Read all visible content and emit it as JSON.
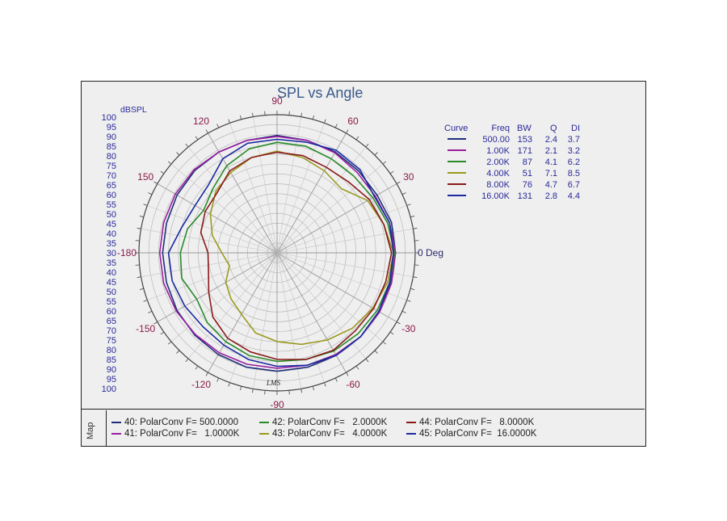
{
  "chart_data": {
    "type": "polar",
    "title": "SPL vs Angle",
    "radial_unit_label": "dBSPL",
    "radial_tick_labels": [
      "100",
      "95",
      "90",
      "85",
      "80",
      "75",
      "70",
      "65",
      "60",
      "55",
      "50",
      "45",
      "40",
      "35",
      "30",
      "35",
      "40",
      "45",
      "50",
      "55",
      "60",
      "65",
      "70",
      "75",
      "80",
      "85",
      "90",
      "95",
      "100"
    ],
    "angle_labels": [
      {
        "angle": 90,
        "text": "90"
      },
      {
        "angle": 60,
        "text": "60"
      },
      {
        "angle": 30,
        "text": "30"
      },
      {
        "angle": 0,
        "text": "0 Deg"
      },
      {
        "angle": -30,
        "text": "-30"
      },
      {
        "angle": -60,
        "text": "-60"
      },
      {
        "angle": -90,
        "text": "-90"
      },
      {
        "angle": -120,
        "text": "-120"
      },
      {
        "angle": -150,
        "text": "-150"
      },
      {
        "angle": 180,
        "text": "-180"
      },
      {
        "angle": 150,
        "text": "150"
      },
      {
        "angle": 120,
        "text": "120"
      }
    ],
    "radial_range": [
      30,
      100
    ],
    "watermark": "LMS",
    "legend": {
      "headers": {
        "curve": "Curve",
        "freq": "Freq",
        "bw": "BW",
        "q": "Q",
        "di": "DI"
      },
      "rows": [
        {
          "freq": "500.00",
          "bw": "153",
          "q": "2.4",
          "di": "3.7"
        },
        {
          "freq": "1.00K",
          "bw": "171",
          "q": "2.1",
          "di": "3.2"
        },
        {
          "freq": "2.00K",
          "bw": "87",
          "q": "4.1",
          "di": "6.2"
        },
        {
          "freq": "4.00K",
          "bw": "51",
          "q": "7.1",
          "di": "8.5"
        },
        {
          "freq": "8.00K",
          "bw": "76",
          "q": "4.7",
          "di": "6.7"
        },
        {
          "freq": "16.00K",
          "bw": "131",
          "q": "2.8",
          "di": "4.4"
        }
      ]
    },
    "series": [
      {
        "color": "#1f2f7a",
        "values": [
          {
            "a": 0,
            "r": 90
          },
          {
            "a": 15,
            "r": 90
          },
          {
            "a": 30,
            "r": 88.5
          },
          {
            "a": 45,
            "r": 88.5
          },
          {
            "a": 60,
            "r": 89
          },
          {
            "a": 75,
            "r": 89
          },
          {
            "a": 90,
            "r": 89.5
          },
          {
            "a": 105,
            "r": 89
          },
          {
            "a": 120,
            "r": 89
          },
          {
            "a": 135,
            "r": 89
          },
          {
            "a": 150,
            "r": 88.5
          },
          {
            "a": 165,
            "r": 88
          },
          {
            "a": 180,
            "r": 88
          },
          {
            "a": 195,
            "r": 88
          },
          {
            "a": 210,
            "r": 88.5
          },
          {
            "a": 225,
            "r": 89
          },
          {
            "a": 240,
            "r": 89.5
          },
          {
            "a": 255,
            "r": 90
          },
          {
            "a": 270,
            "r": 90
          },
          {
            "a": 285,
            "r": 90
          },
          {
            "a": 300,
            "r": 90
          },
          {
            "a": 315,
            "r": 90
          },
          {
            "a": 330,
            "r": 89.5
          },
          {
            "a": 345,
            "r": 89.5
          }
        ]
      },
      {
        "color": "#9a1fa0",
        "values": [
          {
            "a": 0,
            "r": 90
          },
          {
            "a": 15,
            "r": 89
          },
          {
            "a": 30,
            "r": 87.5
          },
          {
            "a": 45,
            "r": 87.5
          },
          {
            "a": 60,
            "r": 88.5
          },
          {
            "a": 75,
            "r": 89
          },
          {
            "a": 90,
            "r": 89
          },
          {
            "a": 105,
            "r": 89
          },
          {
            "a": 120,
            "r": 89
          },
          {
            "a": 135,
            "r": 89.5
          },
          {
            "a": 150,
            "r": 89.5
          },
          {
            "a": 165,
            "r": 89.5
          },
          {
            "a": 180,
            "r": 89.5
          },
          {
            "a": 195,
            "r": 89.5
          },
          {
            "a": 210,
            "r": 89
          },
          {
            "a": 225,
            "r": 88.5
          },
          {
            "a": 240,
            "r": 88.5
          },
          {
            "a": 255,
            "r": 88.5
          },
          {
            "a": 270,
            "r": 88.5
          },
          {
            "a": 285,
            "r": 89
          },
          {
            "a": 300,
            "r": 89.5
          },
          {
            "a": 315,
            "r": 90
          },
          {
            "a": 330,
            "r": 90
          },
          {
            "a": 345,
            "r": 90
          }
        ]
      },
      {
        "color": "#2a8a2a",
        "values": [
          {
            "a": 0,
            "r": 89.5
          },
          {
            "a": 15,
            "r": 88
          },
          {
            "a": 30,
            "r": 86
          },
          {
            "a": 45,
            "r": 85
          },
          {
            "a": 60,
            "r": 85
          },
          {
            "a": 75,
            "r": 86
          },
          {
            "a": 90,
            "r": 86
          },
          {
            "a": 105,
            "r": 84.5
          },
          {
            "a": 120,
            "r": 81
          },
          {
            "a": 135,
            "r": 76
          },
          {
            "a": 150,
            "r": 73
          },
          {
            "a": 165,
            "r": 77
          },
          {
            "a": 180,
            "r": 79
          },
          {
            "a": 195,
            "r": 80
          },
          {
            "a": 210,
            "r": 77
          },
          {
            "a": 225,
            "r": 80
          },
          {
            "a": 240,
            "r": 82
          },
          {
            "a": 255,
            "r": 84
          },
          {
            "a": 270,
            "r": 85
          },
          {
            "a": 285,
            "r": 86
          },
          {
            "a": 300,
            "r": 87.5
          },
          {
            "a": 315,
            "r": 88
          },
          {
            "a": 330,
            "r": 88.5
          },
          {
            "a": 345,
            "r": 89
          }
        ]
      },
      {
        "color": "#9a9a20",
        "values": [
          {
            "a": 0,
            "r": 89
          },
          {
            "a": 15,
            "r": 86
          },
          {
            "a": 30,
            "r": 83
          },
          {
            "a": 45,
            "r": 76
          },
          {
            "a": 60,
            "r": 78
          },
          {
            "a": 75,
            "r": 80
          },
          {
            "a": 90,
            "r": 81.5
          },
          {
            "a": 105,
            "r": 80
          },
          {
            "a": 120,
            "r": 77
          },
          {
            "a": 135,
            "r": 74
          },
          {
            "a": 150,
            "r": 69
          },
          {
            "a": 165,
            "r": 64
          },
          {
            "a": 180,
            "r": 58
          },
          {
            "a": 195,
            "r": 55
          },
          {
            "a": 210,
            "r": 60
          },
          {
            "a": 225,
            "r": 63
          },
          {
            "a": 240,
            "r": 66
          },
          {
            "a": 255,
            "r": 72
          },
          {
            "a": 270,
            "r": 75
          },
          {
            "a": 285,
            "r": 78
          },
          {
            "a": 300,
            "r": 81
          },
          {
            "a": 315,
            "r": 84
          },
          {
            "a": 330,
            "r": 86
          },
          {
            "a": 345,
            "r": 88
          }
        ]
      },
      {
        "color": "#8a1a1a",
        "values": [
          {
            "a": 0,
            "r": 88
          },
          {
            "a": 15,
            "r": 86
          },
          {
            "a": 30,
            "r": 84
          },
          {
            "a": 45,
            "r": 81
          },
          {
            "a": 60,
            "r": 80
          },
          {
            "a": 75,
            "r": 81
          },
          {
            "a": 90,
            "r": 81
          },
          {
            "a": 105,
            "r": 80
          },
          {
            "a": 120,
            "r": 78
          },
          {
            "a": 135,
            "r": 73
          },
          {
            "a": 150,
            "r": 72
          },
          {
            "a": 165,
            "r": 70
          },
          {
            "a": 180,
            "r": 65
          },
          {
            "a": 195,
            "r": 66
          },
          {
            "a": 210,
            "r": 70
          },
          {
            "a": 225,
            "r": 76
          },
          {
            "a": 240,
            "r": 80
          },
          {
            "a": 255,
            "r": 82
          },
          {
            "a": 270,
            "r": 84
          },
          {
            "a": 285,
            "r": 86
          },
          {
            "a": 300,
            "r": 87
          },
          {
            "a": 315,
            "r": 86
          },
          {
            "a": 330,
            "r": 86.5
          },
          {
            "a": 345,
            "r": 87
          }
        ]
      },
      {
        "color": "#1a2aa0",
        "values": [
          {
            "a": 0,
            "r": 89
          },
          {
            "a": 15,
            "r": 89
          },
          {
            "a": 30,
            "r": 87
          },
          {
            "a": 45,
            "r": 89.5
          },
          {
            "a": 60,
            "r": 90
          },
          {
            "a": 75,
            "r": 88
          },
          {
            "a": 90,
            "r": 87.5
          },
          {
            "a": 105,
            "r": 87.5
          },
          {
            "a": 120,
            "r": 85
          },
          {
            "a": 135,
            "r": 79
          },
          {
            "a": 150,
            "r": 78
          },
          {
            "a": 165,
            "r": 80
          },
          {
            "a": 180,
            "r": 85
          },
          {
            "a": 195,
            "r": 85
          },
          {
            "a": 210,
            "r": 84
          },
          {
            "a": 225,
            "r": 83
          },
          {
            "a": 240,
            "r": 84
          },
          {
            "a": 255,
            "r": 86
          },
          {
            "a": 270,
            "r": 87.5
          },
          {
            "a": 285,
            "r": 89
          },
          {
            "a": 300,
            "r": 90
          },
          {
            "a": 315,
            "r": 90
          },
          {
            "a": 330,
            "r": 89.5
          },
          {
            "a": 345,
            "r": 89
          }
        ]
      }
    ]
  },
  "map": {
    "label": "Map",
    "entries": [
      {
        "text": "40: PolarConv F= 500.0000",
        "color": "#1f2f7a"
      },
      {
        "text": "41: PolarConv F=   1.0000K",
        "color": "#9a1fa0"
      },
      {
        "text": "42: PolarConv F=   2.0000K",
        "color": "#2a8a2a"
      },
      {
        "text": "43: PolarConv F=   4.0000K",
        "color": "#9a9a20"
      },
      {
        "text": "44: PolarConv F=   8.0000K",
        "color": "#8a1a1a"
      },
      {
        "text": "45: PolarConv F=  16.0000K",
        "color": "#1a2aa0"
      }
    ]
  }
}
